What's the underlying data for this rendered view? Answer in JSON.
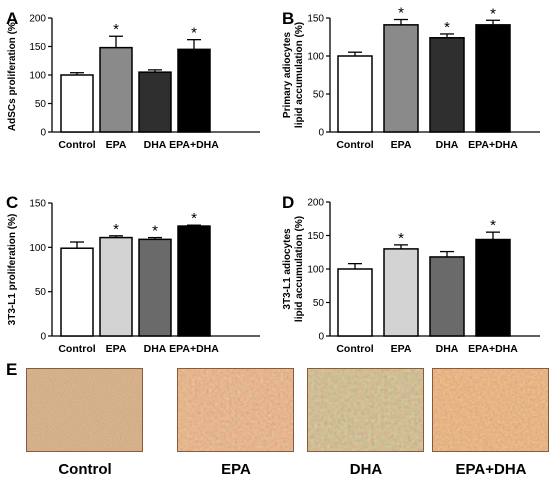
{
  "chart_data": [
    {
      "panel": "A",
      "type": "bar",
      "categories": [
        "Control",
        "EPA",
        "DHA",
        "EPA+DHA"
      ],
      "values": [
        100,
        148,
        105,
        145
      ],
      "errors": [
        4,
        20,
        4,
        17
      ],
      "significance": [
        "",
        "*",
        "",
        "*"
      ],
      "ylabel": "AdSCs proliferation (%)",
      "ylim": [
        0,
        200
      ],
      "yticks": [
        "0",
        "50",
        "100",
        "150",
        "200"
      ],
      "colors": [
        "#ffffff",
        "#8a8a8a",
        "#2f2f2f",
        "#000000"
      ]
    },
    {
      "panel": "B",
      "type": "bar",
      "categories": [
        "Control",
        "EPA",
        "DHA",
        "EPA+DHA"
      ],
      "values": [
        100,
        141,
        124,
        141
      ],
      "errors": [
        5,
        7,
        5,
        6
      ],
      "significance": [
        "",
        "*",
        "*",
        "*"
      ],
      "ylabel_lines": [
        "Primary adiocytes",
        "lipid accumulation (%)"
      ],
      "ylim": [
        0,
        150
      ],
      "yticks": [
        "0",
        "50",
        "100",
        "150"
      ],
      "colors": [
        "#ffffff",
        "#8a8a8a",
        "#2f2f2f",
        "#000000"
      ]
    },
    {
      "panel": "C",
      "type": "bar",
      "categories": [
        "Control",
        "EPA",
        "DHA",
        "EPA+DHA"
      ],
      "values": [
        99,
        111,
        109,
        124
      ],
      "errors": [
        7,
        2,
        2,
        1
      ],
      "significance": [
        "",
        "*",
        "*",
        "*"
      ],
      "ylabel": "3T3-L1 proliferation (%)",
      "ylim": [
        0,
        150
      ],
      "yticks": [
        "0",
        "50",
        "100",
        "150"
      ],
      "colors": [
        "#ffffff",
        "#d3d3d3",
        "#6a6a6a",
        "#000000"
      ]
    },
    {
      "panel": "D",
      "type": "bar",
      "categories": [
        "Control",
        "EPA",
        "DHA",
        "EPA+DHA"
      ],
      "values": [
        100,
        130,
        118,
        144
      ],
      "errors": [
        8,
        6,
        8,
        11
      ],
      "significance": [
        "",
        "*",
        "",
        "*"
      ],
      "ylabel_lines": [
        "3T3-L1 adiocytes",
        "lipid accumulation (%)"
      ],
      "ylim": [
        0,
        200
      ],
      "yticks": [
        "0",
        "50",
        "100",
        "150",
        "200"
      ],
      "colors": [
        "#ffffff",
        "#d3d3d3",
        "#6a6a6a",
        "#000000"
      ]
    }
  ],
  "panel_e": {
    "letter": "E",
    "labels": [
      "Control",
      "EPA",
      "DHA",
      "EPA+DHA"
    ]
  }
}
